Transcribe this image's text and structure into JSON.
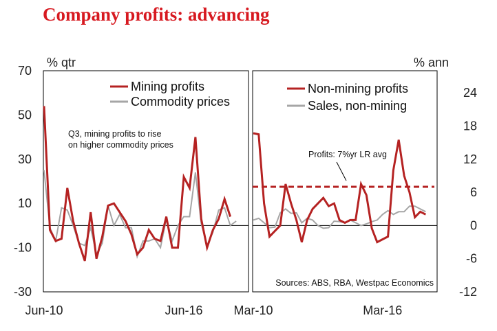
{
  "title": "Company profits: advancing",
  "colors": {
    "red": "#b52222",
    "gray": "#a6a6a6",
    "axis": "#000000",
    "title": "#d71920"
  },
  "chart_data": [
    {
      "type": "line",
      "panel": "left",
      "unit_label": "% qtr",
      "ylim": [
        -30,
        70
      ],
      "yticks": [
        "70",
        "50",
        "30",
        "10",
        "-10",
        "-30"
      ],
      "ytick_values": [
        70,
        50,
        30,
        10,
        -10,
        -30
      ],
      "x_ticks": [
        "Jun-10",
        "Jun-16"
      ],
      "x_tick_index": [
        0,
        24
      ],
      "n_points": 36,
      "annotation": [
        "Q3, mining profits to rise",
        "on higher commodity prices"
      ],
      "series": [
        {
          "name": "Mining profits",
          "color": "red",
          "values": [
            54,
            -2,
            -7,
            -6,
            17,
            2,
            -8,
            -16,
            6,
            -15,
            -5,
            9,
            10,
            6,
            2,
            -4,
            -13,
            -10,
            -2,
            -6,
            -7,
            4,
            -10,
            -10,
            22,
            17,
            40,
            3,
            -10,
            -2,
            3,
            12,
            4
          ]
        },
        {
          "name": "Commodity prices",
          "color": "gray",
          "values": [
            25,
            -1,
            -7,
            8,
            7,
            0,
            -8,
            -9,
            -1,
            -13,
            -8,
            9,
            0,
            5,
            -1,
            -1,
            -14,
            -7,
            -7,
            -6,
            -10,
            3,
            -7,
            0,
            4,
            4,
            24,
            1,
            -9,
            -3,
            7,
            8,
            0,
            2
          ]
        }
      ]
    },
    {
      "type": "line",
      "panel": "right",
      "unit_label": "% ann",
      "ylim": [
        -12,
        28
      ],
      "yticks": [
        "24",
        "18",
        "12",
        "6",
        "0",
        "-6",
        "-12"
      ],
      "ytick_values": [
        24,
        18,
        12,
        6,
        0,
        -6,
        -12
      ],
      "x_ticks": [
        "Mar-10",
        "Mar-16"
      ],
      "x_tick_index": [
        0,
        24
      ],
      "n_points": 35,
      "reference_line": {
        "label": "Profits: 7%yr LR avg",
        "value": 7
      },
      "source": "Sources: ABS, RBA, Westpac Economics",
      "series": [
        {
          "name": "Non-mining profits",
          "color": "red",
          "values": [
            16.7,
            16.5,
            4,
            -2,
            -1,
            0,
            7.5,
            4,
            1,
            -3,
            1,
            3,
            4,
            5,
            3.5,
            4,
            1,
            0.5,
            1,
            1,
            7.5,
            5.5,
            -0.5,
            -3,
            -2.5,
            -2,
            10,
            15.5,
            9,
            6,
            1.5,
            2.5,
            2
          ]
        },
        {
          "name": "Sales, non-mining",
          "color": "gray",
          "values": [
            1,
            1.3,
            0.5,
            -0.4,
            -0.3,
            2.3,
            3,
            2.2,
            2.3,
            0.5,
            1.3,
            1,
            0,
            -0.5,
            -0.4,
            0.8,
            0.7,
            0.5,
            1,
            0.5,
            0,
            0.3,
            0.7,
            1,
            2,
            2.7,
            2,
            2.5,
            2.5,
            3.5,
            3.5,
            3,
            2.5
          ]
        }
      ]
    }
  ]
}
